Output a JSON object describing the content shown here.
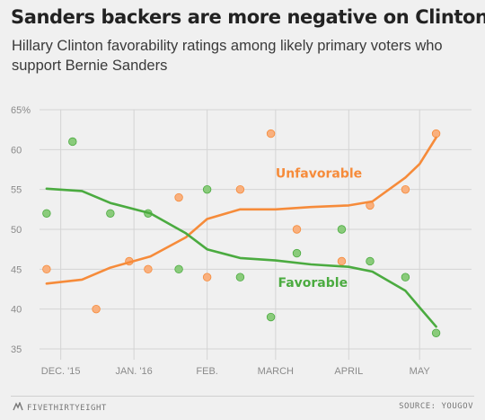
{
  "title": "Sanders backers are more negative on Clinton",
  "subtitle": "Hillary Clinton favorability ratings among likely primary voters who support Bernie Sanders",
  "footer": {
    "brand": "FIVETHIRTYEIGHT",
    "source": "SOURCE: YOUGOV"
  },
  "colors": {
    "unfavorable": "#f68b3a",
    "favorable": "#4bab40",
    "unfavorable_point": "#f9b07e",
    "favorable_point": "#8acb7b",
    "grid": "#d4d4d4",
    "tick": "#8a8a8a"
  },
  "chart_data": {
    "type": "scatter",
    "title": "Sanders backers are more negative on Clinton",
    "subtitle": "Hillary Clinton favorability ratings among likely primary voters who support Bernie Sanders",
    "xlabel": "",
    "ylabel": "",
    "ylim": [
      35,
      65
    ],
    "yticks": [
      35,
      40,
      45,
      50,
      55,
      60,
      65
    ],
    "ytick_labels": [
      "35",
      "40",
      "45",
      "50",
      "55",
      "60",
      "65%"
    ],
    "xlim": [
      "2015-11-22",
      "2016-05-23"
    ],
    "xticks": [
      "2015-12-01",
      "2016-01-01",
      "2016-02-01",
      "2016-03-01",
      "2016-04-01",
      "2016-05-01"
    ],
    "xtick_labels": [
      "DEC. '15",
      "JAN. '16",
      "FEB.",
      "MARCH",
      "APRIL",
      "MAY"
    ],
    "grid": true,
    "series": [
      {
        "name": "Unfavorable",
        "points": [
          {
            "date": "2015-11-25",
            "value": 45
          },
          {
            "date": "2015-12-16",
            "value": 40
          },
          {
            "date": "2015-12-30",
            "value": 46
          },
          {
            "date": "2016-01-07",
            "value": 45
          },
          {
            "date": "2016-01-20",
            "value": 54
          },
          {
            "date": "2016-02-01",
            "value": 44
          },
          {
            "date": "2016-02-15",
            "value": 55
          },
          {
            "date": "2016-02-28",
            "value": 62
          },
          {
            "date": "2016-03-10",
            "value": 50
          },
          {
            "date": "2016-03-29",
            "value": 46
          },
          {
            "date": "2016-04-10",
            "value": 53
          },
          {
            "date": "2016-04-25",
            "value": 55
          },
          {
            "date": "2016-05-08",
            "value": 62
          }
        ],
        "trend": [
          {
            "date": "2015-11-25",
            "value": 43.2
          },
          {
            "date": "2015-12-10",
            "value": 43.7
          },
          {
            "date": "2015-12-22",
            "value": 45.2
          },
          {
            "date": "2016-01-08",
            "value": 46.6
          },
          {
            "date": "2016-01-23",
            "value": 49.0
          },
          {
            "date": "2016-02-01",
            "value": 51.3
          },
          {
            "date": "2016-02-15",
            "value": 52.5
          },
          {
            "date": "2016-03-01",
            "value": 52.5
          },
          {
            "date": "2016-03-16",
            "value": 52.8
          },
          {
            "date": "2016-04-01",
            "value": 53.0
          },
          {
            "date": "2016-04-11",
            "value": 53.5
          },
          {
            "date": "2016-04-25",
            "value": 56.5
          },
          {
            "date": "2016-05-01",
            "value": 58.2
          },
          {
            "date": "2016-05-08",
            "value": 61.5
          }
        ]
      },
      {
        "name": "Favorable",
        "points": [
          {
            "date": "2015-11-25",
            "value": 52
          },
          {
            "date": "2015-12-06",
            "value": 61
          },
          {
            "date": "2015-12-22",
            "value": 52
          },
          {
            "date": "2016-01-07",
            "value": 52
          },
          {
            "date": "2016-01-20",
            "value": 45
          },
          {
            "date": "2016-02-01",
            "value": 55
          },
          {
            "date": "2016-02-15",
            "value": 44
          },
          {
            "date": "2016-02-28",
            "value": 39
          },
          {
            "date": "2016-03-10",
            "value": 47
          },
          {
            "date": "2016-03-29",
            "value": 50
          },
          {
            "date": "2016-04-10",
            "value": 46
          },
          {
            "date": "2016-04-25",
            "value": 44
          },
          {
            "date": "2016-05-08",
            "value": 37
          }
        ],
        "trend": [
          {
            "date": "2015-11-25",
            "value": 55.1
          },
          {
            "date": "2015-12-10",
            "value": 54.8
          },
          {
            "date": "2015-12-22",
            "value": 53.3
          },
          {
            "date": "2016-01-08",
            "value": 52.0
          },
          {
            "date": "2016-01-23",
            "value": 49.5
          },
          {
            "date": "2016-02-01",
            "value": 47.5
          },
          {
            "date": "2016-02-15",
            "value": 46.4
          },
          {
            "date": "2016-03-01",
            "value": 46.1
          },
          {
            "date": "2016-03-16",
            "value": 45.6
          },
          {
            "date": "2016-04-01",
            "value": 45.3
          },
          {
            "date": "2016-04-11",
            "value": 44.7
          },
          {
            "date": "2016-04-25",
            "value": 42.3
          },
          {
            "date": "2016-05-01",
            "value": 40.2
          },
          {
            "date": "2016-05-08",
            "value": 37.8
          }
        ]
      }
    ],
    "annotations": [
      {
        "text": "Unfavorable",
        "series": "Unfavorable",
        "date": "2016-03-01",
        "value": 56.5
      },
      {
        "text": "Favorable",
        "series": "Favorable",
        "date": "2016-03-02",
        "value": 42.8
      }
    ]
  }
}
